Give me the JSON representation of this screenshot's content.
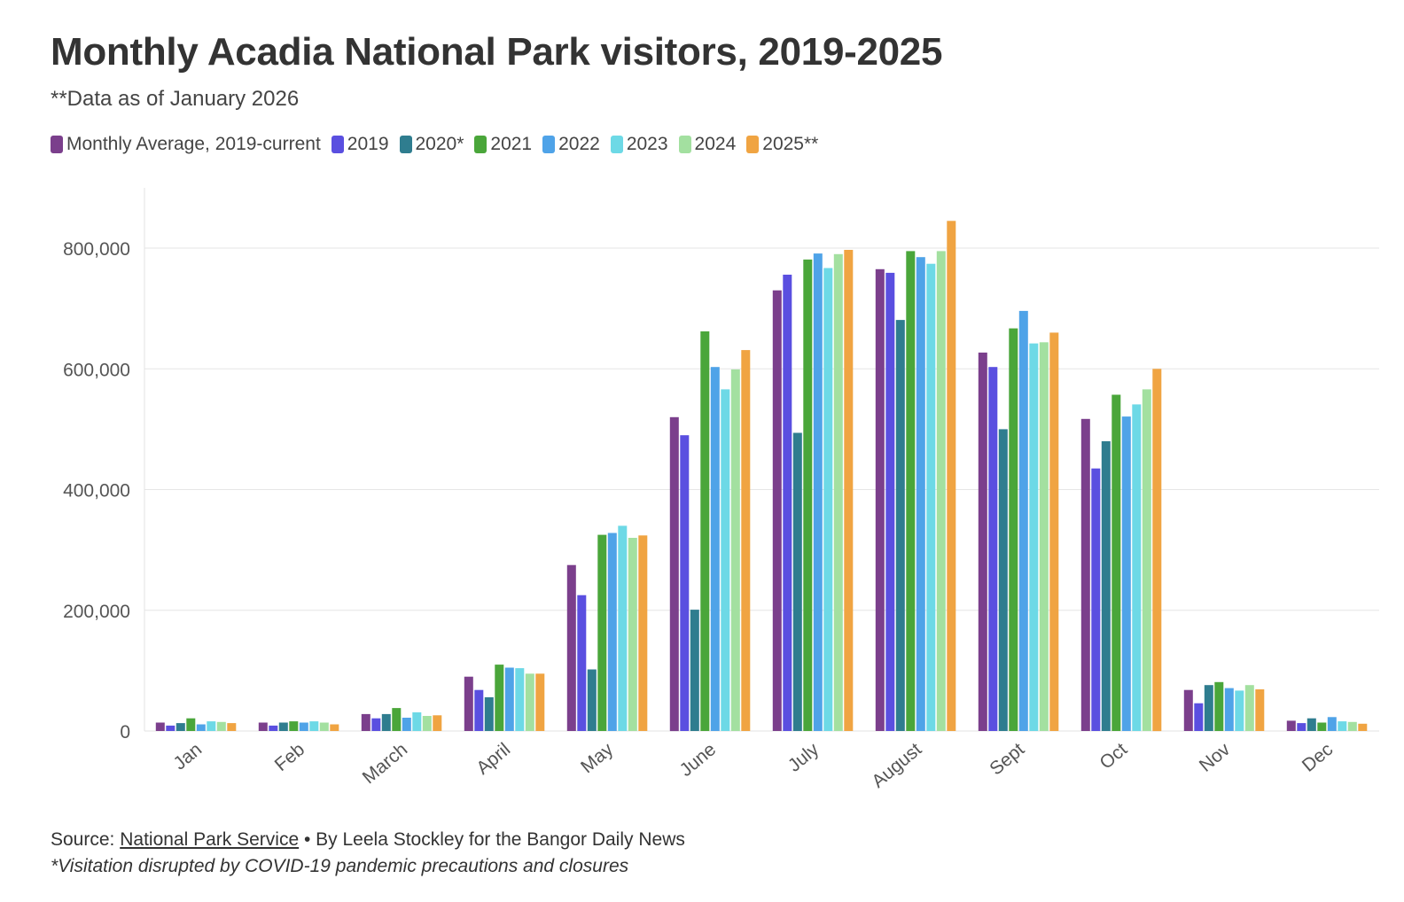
{
  "chart_data": {
    "type": "bar",
    "title": "Monthly Acadia National Park visitors, 2019-2025",
    "subtitle": "**Data as of January 2026",
    "xlabel": "",
    "ylabel": "",
    "ylim": [
      0,
      900000
    ],
    "yticks": [
      0,
      200000,
      400000,
      600000,
      800000
    ],
    "ytick_labels": [
      "0",
      "200,000",
      "400,000",
      "600,000",
      "800,000"
    ],
    "grid": true,
    "categories": [
      "Jan",
      "Feb",
      "March",
      "April",
      "May",
      "June",
      "July",
      "August",
      "Sept",
      "Oct",
      "Nov",
      "Dec"
    ],
    "series": [
      {
        "name": "Monthly Average, 2019-current",
        "color": "#7b3f8c",
        "values": [
          14000,
          14000,
          28000,
          90000,
          275000,
          520000,
          730000,
          765000,
          627000,
          517000,
          68000,
          17000
        ]
      },
      {
        "name": "2019",
        "color": "#5a4fe0",
        "values": [
          9000,
          9000,
          21000,
          68000,
          225000,
          490000,
          756000,
          759000,
          603000,
          435000,
          46000,
          13000
        ]
      },
      {
        "name": "2020*",
        "color": "#2f7d8f",
        "values": [
          13000,
          14000,
          28000,
          56000,
          102000,
          201000,
          494000,
          681000,
          500000,
          480000,
          76000,
          21000
        ]
      },
      {
        "name": "2021",
        "color": "#4aa63a",
        "values": [
          21000,
          16000,
          38000,
          110000,
          325000,
          662000,
          781000,
          795000,
          667000,
          557000,
          81000,
          14000
        ]
      },
      {
        "name": "2022",
        "color": "#4fa3e8",
        "values": [
          11000,
          14000,
          22000,
          105000,
          328000,
          603000,
          791000,
          785000,
          696000,
          521000,
          71000,
          23000
        ]
      },
      {
        "name": "2023",
        "color": "#6dd9e6",
        "values": [
          16000,
          16000,
          31000,
          104000,
          340000,
          566000,
          767000,
          774000,
          642000,
          541000,
          67000,
          16000
        ]
      },
      {
        "name": "2024",
        "color": "#a3e0a0",
        "values": [
          15000,
          14000,
          25000,
          95000,
          320000,
          599000,
          790000,
          795000,
          644000,
          566000,
          76000,
          15000
        ]
      },
      {
        "name": "2025**",
        "color": "#f0a442",
        "values": [
          13000,
          11000,
          26000,
          95000,
          324000,
          631000,
          797000,
          845000,
          660000,
          600000,
          69000,
          12000
        ]
      }
    ]
  },
  "footer": {
    "source_prefix": "Source: ",
    "source_link": "National Park Service",
    "source_suffix": " • By Leela Stockley for the Bangor Daily News",
    "note": "*Visitation disrupted by COVID-19 pandemic precautions and closures"
  }
}
